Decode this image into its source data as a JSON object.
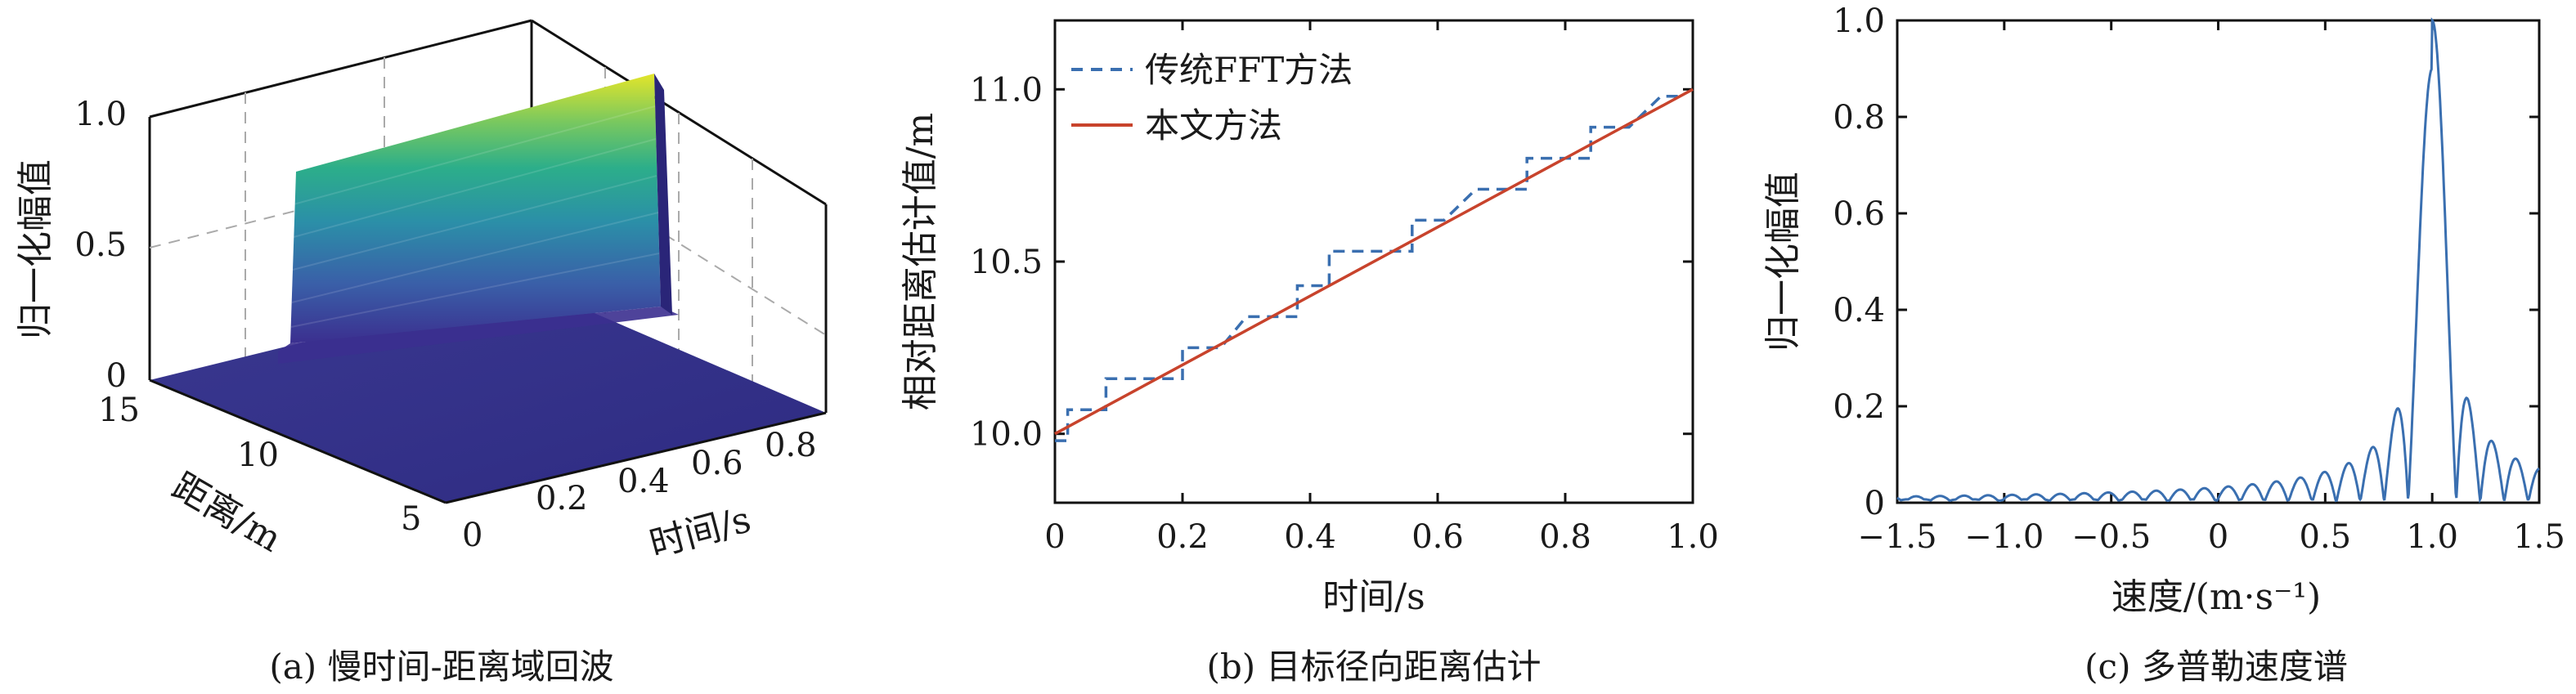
{
  "figure": {
    "captions": [
      "(a) 慢时间-距离域回波",
      "(b) 目标径向距离估计",
      "(c) 多普勒速度谱"
    ]
  },
  "chart_data": [
    {
      "type": "surface",
      "panel": "a",
      "xlabel": "时间/s",
      "ylabel": "距离/m",
      "zlabel": "归一化幅值",
      "x_ticks": [
        "0",
        "0.2",
        "0.4",
        "0.6",
        "0.8"
      ],
      "y_ticks": [
        "5",
        "10",
        "15"
      ],
      "z_ticks": [
        "0",
        "0.5",
        "1.0"
      ],
      "xlim": [
        0,
        0.9
      ],
      "ylim": [
        5,
        15
      ],
      "zlim": [
        0,
        1.0
      ],
      "peak_range_m": [
        10.0,
        11.0
      ],
      "peak_amplitude": 1.0,
      "colormap": [
        "#3b2f8f",
        "#3a5fa8",
        "#2b8fa8",
        "#2cae8a",
        "#79c85f",
        "#e3e52a"
      ],
      "grid": true
    },
    {
      "type": "line",
      "panel": "b",
      "xlabel": "时间/s",
      "ylabel": "相对距离估计值/m",
      "xlim": [
        0,
        1.0
      ],
      "ylim": [
        9.8,
        11.2
      ],
      "x_ticks": [
        "0",
        "0.2",
        "0.4",
        "0.6",
        "0.8",
        "1.0"
      ],
      "y_ticks": [
        "10.0",
        "10.5",
        "11.0"
      ],
      "legend_position": "top-left",
      "series": [
        {
          "name": "传统FFT方法",
          "style": "dashed-step",
          "color": "#3a6fb0",
          "x": [
            0,
            0.02,
            0.02,
            0.08,
            0.08,
            0.12,
            0.12,
            0.2,
            0.2,
            0.26,
            0.26,
            0.3,
            0.3,
            0.38,
            0.38,
            0.43,
            0.43,
            0.48,
            0.48,
            0.56,
            0.56,
            0.61,
            0.61,
            0.66,
            0.66,
            0.74,
            0.74,
            0.79,
            0.79,
            0.84,
            0.84,
            0.9,
            0.9,
            0.95,
            0.95,
            0.98
          ],
          "y": [
            9.98,
            9.98,
            10.07,
            10.07,
            10.16,
            10.16,
            10.16,
            10.16,
            10.25,
            10.25,
            10.25,
            10.34,
            10.34,
            10.34,
            10.43,
            10.43,
            10.53,
            10.53,
            10.53,
            10.53,
            10.62,
            10.62,
            10.62,
            10.71,
            10.71,
            10.71,
            10.8,
            10.8,
            10.8,
            10.8,
            10.89,
            10.89,
            10.89,
            10.98,
            10.98,
            10.98
          ]
        },
        {
          "name": "本文方法",
          "style": "solid",
          "color": "#c8432c",
          "x": [
            0,
            1.0
          ],
          "y": [
            10.0,
            11.0
          ]
        }
      ],
      "grid": false
    },
    {
      "type": "line",
      "panel": "c",
      "xlabel": "速度/(m·s⁻¹)",
      "ylabel": "归一化幅值",
      "xlim": [
        -1.5,
        1.5
      ],
      "ylim": [
        0,
        1.0
      ],
      "x_ticks": [
        "−1.5",
        "−1.0",
        "−0.5",
        "0",
        "0.5",
        "1.0",
        "1.5"
      ],
      "y_ticks": [
        "0",
        "0.2",
        "0.4",
        "0.6",
        "0.8",
        "1.0"
      ],
      "peak_velocity": 1.0,
      "series": [
        {
          "color": "#3a6fb0",
          "description_points": {
            "x": [
              -1.5,
              -1.0,
              -0.5,
              0,
              0.5,
              0.7,
              0.8,
              0.9,
              0.93,
              0.96,
              0.98,
              1.0,
              1.02,
              1.04,
              1.07,
              1.1,
              1.2,
              1.3,
              1.5
            ],
            "y": [
              0.005,
              0.005,
              0.005,
              0.005,
              0.008,
              0.015,
              0.025,
              0.05,
              0.12,
              0.08,
              0.3,
              1.0,
              0.3,
              0.08,
              0.07,
              0.03,
              0.02,
              0.012,
              0.008
            ]
          }
        }
      ],
      "grid": false
    }
  ]
}
